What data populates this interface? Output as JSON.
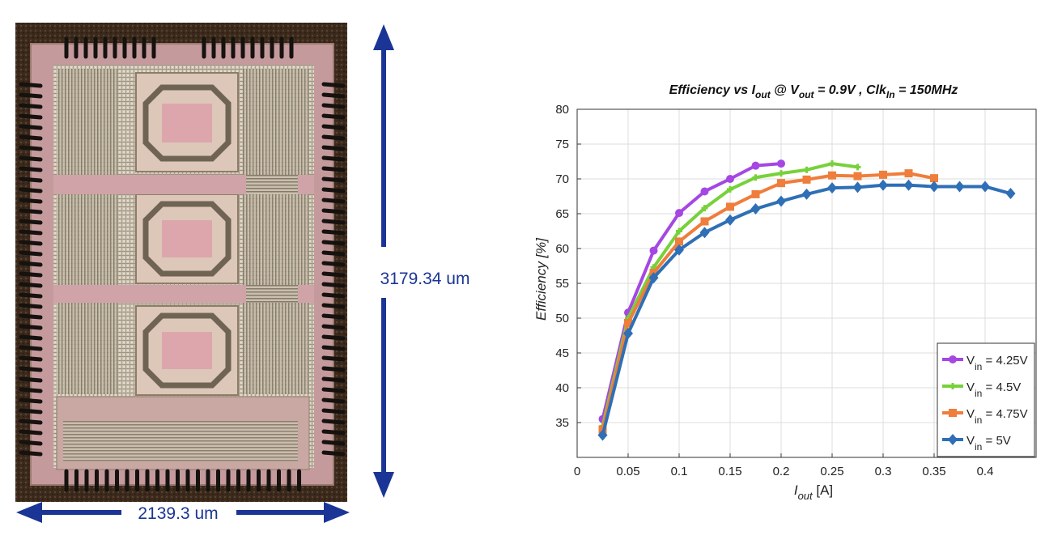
{
  "die": {
    "width_label": "2139.3 um",
    "height_label": "3179.34 um",
    "arrow_color": "#1a3596"
  },
  "chart_data": {
    "type": "line",
    "title": "Efficiency vs I_out @ V_out = 0.9V , Clk_In = 150MHz",
    "title_parts": {
      "t1": "Efficiency vs I",
      "t1_sub": "out",
      "t2": " @ V",
      "t2_sub": "out",
      "t3": " = 0.9V , Clk",
      "t3_sub": "In",
      "t4": " = 150MHz"
    },
    "xlabel": "I_out [A]",
    "xlabel_parts": {
      "main": "I",
      "sub": "out",
      "unit": " [A]"
    },
    "ylabel": "Efficiency [%]",
    "xlim": [
      0,
      0.45
    ],
    "ylim": [
      30,
      80
    ],
    "xticks": [
      0,
      0.05,
      0.1,
      0.15,
      0.2,
      0.25,
      0.3,
      0.35,
      0.4
    ],
    "xtick_labels": [
      "0",
      "0.05",
      "0.1",
      "0.15",
      "0.2",
      "0.25",
      "0.3",
      "0.35",
      "0.4"
    ],
    "yticks": [
      35,
      40,
      45,
      50,
      55,
      60,
      65,
      70,
      75,
      80
    ],
    "grid": true,
    "legend_position": "bottom-right",
    "series": [
      {
        "name": "V_in = 4.25V",
        "legend_main": "V",
        "legend_sub": "in",
        "legend_rest": " = 4.25V",
        "color": "#a547e3",
        "marker": "circle",
        "x": [
          0.025,
          0.05,
          0.075,
          0.1,
          0.125,
          0.15,
          0.175,
          0.2
        ],
        "y": [
          35.5,
          50.8,
          59.7,
          65.1,
          68.2,
          70.0,
          71.9,
          72.2
        ]
      },
      {
        "name": "V_in = 4.5V",
        "legend_main": "V",
        "legend_sub": "in",
        "legend_rest": " = 4.5V",
        "color": "#77d13a",
        "marker": "plus",
        "x": [
          0.025,
          0.05,
          0.075,
          0.1,
          0.125,
          0.15,
          0.175,
          0.2,
          0.225,
          0.25,
          0.275
        ],
        "y": [
          34.5,
          50.0,
          57.3,
          62.5,
          65.8,
          68.5,
          70.2,
          70.8,
          71.3,
          72.2,
          71.7
        ]
      },
      {
        "name": "V_in = 4.75V",
        "legend_main": "V",
        "legend_sub": "in",
        "legend_rest": " = 4.75V",
        "color": "#ef7d3b",
        "marker": "square",
        "x": [
          0.025,
          0.05,
          0.075,
          0.1,
          0.125,
          0.15,
          0.175,
          0.2,
          0.225,
          0.25,
          0.275,
          0.3,
          0.325,
          0.35
        ],
        "y": [
          34.0,
          49.3,
          56.5,
          61.0,
          63.9,
          66.0,
          67.8,
          69.4,
          69.9,
          70.5,
          70.4,
          70.6,
          70.8,
          70.1
        ]
      },
      {
        "name": "V_in = 5V",
        "legend_main": "V",
        "legend_sub": "in",
        "legend_rest": " = 5V",
        "color": "#2e6fb6",
        "marker": "diamond",
        "x": [
          0.025,
          0.05,
          0.075,
          0.1,
          0.125,
          0.15,
          0.175,
          0.2,
          0.225,
          0.25,
          0.275,
          0.3,
          0.325,
          0.35,
          0.375,
          0.4,
          0.425
        ],
        "y": [
          33.2,
          47.8,
          55.8,
          59.8,
          62.3,
          64.1,
          65.7,
          66.8,
          67.8,
          68.7,
          68.8,
          69.1,
          69.1,
          68.9,
          68.9,
          68.9,
          67.9
        ]
      }
    ]
  }
}
